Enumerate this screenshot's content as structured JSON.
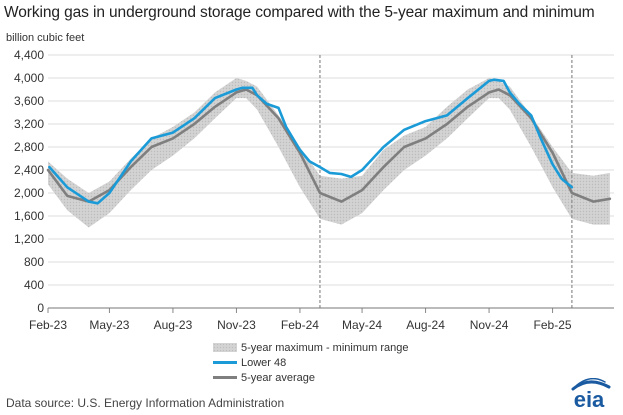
{
  "title": "Working gas in underground  storage compared with the 5-year maximum and minimum",
  "units": "billion cubic feet",
  "source": "Data source:  U.S. Energy Information Administration",
  "logo_text": "eia",
  "legend": {
    "band": "5-year maximum - minimum range",
    "lower48": "Lower 48",
    "avg": "5-year average"
  },
  "colors": {
    "lower48": "#1a9bd7",
    "avg": "#7f7f7f",
    "band": "#d3d3d3",
    "grid": "#dcdcdc",
    "logo": "#1a5aa0"
  },
  "chart_data": {
    "type": "area",
    "title": "Working gas in underground  storage compared with the 5-year maximum and minimum",
    "ylabel": "billion cubic feet",
    "xlabel": "",
    "ylim": [
      0,
      4400
    ],
    "yticks": [
      0,
      400,
      800,
      1200,
      1600,
      2000,
      2400,
      2800,
      3200,
      3600,
      4000,
      4400
    ],
    "ytick_labels": [
      "0",
      "400",
      "800",
      "1,200",
      "1,600",
      "2,000",
      "2,400",
      "2,800",
      "3,200",
      "3,600",
      "4,000",
      "4,400"
    ],
    "xticks": [
      "Feb-23",
      "May-23",
      "Aug-23",
      "Nov-23",
      "Feb-24",
      "May-24",
      "Aug-24",
      "Nov-24",
      "Feb-25"
    ],
    "grid": true,
    "legend_position": "bottom-center",
    "dashed_markers": [
      "2024-03-01",
      "2025-03-01"
    ],
    "series": [
      {
        "name": "5-year maximum - minimum range",
        "kind": "band",
        "x": [
          "2023-02-01",
          "2023-03-01",
          "2023-04-01",
          "2023-05-01",
          "2023-06-01",
          "2023-07-01",
          "2023-08-01",
          "2023-09-01",
          "2023-10-01",
          "2023-11-01",
          "2023-11-15",
          "2023-12-01",
          "2024-01-01",
          "2024-02-01",
          "2024-03-01",
          "2024-04-01",
          "2024-05-01",
          "2024-06-01",
          "2024-07-01",
          "2024-08-01",
          "2024-09-01",
          "2024-10-01",
          "2024-11-01",
          "2024-11-15",
          "2024-12-01",
          "2025-01-01",
          "2025-02-01",
          "2025-03-01",
          "2025-04-01",
          "2025-04-25"
        ],
        "max": [
          2550,
          2250,
          2000,
          2200,
          2600,
          2950,
          3150,
          3400,
          3750,
          4000,
          3950,
          3850,
          3350,
          2800,
          2300,
          2250,
          2300,
          2750,
          3000,
          3150,
          3500,
          3800,
          4000,
          3950,
          3850,
          3350,
          2800,
          2350,
          2300,
          2350
        ],
        "min": [
          2150,
          1700,
          1400,
          1650,
          2050,
          2400,
          2650,
          2950,
          3300,
          3650,
          3650,
          3450,
          2800,
          2100,
          1550,
          1450,
          1650,
          2050,
          2400,
          2650,
          2950,
          3300,
          3650,
          3650,
          3450,
          2800,
          2100,
          1550,
          1450,
          1450
        ]
      },
      {
        "name": "Lower 48",
        "x": [
          "2023-02-03",
          "2023-03-01",
          "2023-04-01",
          "2023-04-14",
          "2023-05-01",
          "2023-06-01",
          "2023-07-01",
          "2023-08-01",
          "2023-09-01",
          "2023-10-01",
          "2023-11-01",
          "2023-11-10",
          "2023-11-24",
          "2023-12-01",
          "2023-12-15",
          "2024-01-01",
          "2024-01-12",
          "2024-02-01",
          "2024-02-15",
          "2024-03-01",
          "2024-03-15",
          "2024-04-01",
          "2024-04-15",
          "2024-05-01",
          "2024-06-01",
          "2024-07-01",
          "2024-08-01",
          "2024-09-01",
          "2024-10-01",
          "2024-11-01",
          "2024-11-08",
          "2024-11-22",
          "2024-12-01",
          "2024-12-15",
          "2025-01-01",
          "2025-01-15",
          "2025-02-01",
          "2025-02-14",
          "2025-03-01"
        ],
        "values": [
          2450,
          2100,
          1850,
          1820,
          2000,
          2550,
          2950,
          3050,
          3300,
          3650,
          3800,
          3830,
          3830,
          3700,
          3550,
          3480,
          3150,
          2750,
          2550,
          2450,
          2350,
          2330,
          2280,
          2400,
          2800,
          3100,
          3250,
          3350,
          3650,
          3950,
          3970,
          3950,
          3750,
          3550,
          3350,
          2950,
          2500,
          2250,
          2100
        ]
      },
      {
        "name": "5-year average",
        "x": [
          "2023-02-01",
          "2023-03-01",
          "2023-04-01",
          "2023-05-01",
          "2023-06-01",
          "2023-07-01",
          "2023-08-01",
          "2023-09-01",
          "2023-10-01",
          "2023-11-01",
          "2023-11-15",
          "2023-12-01",
          "2024-01-01",
          "2024-02-01",
          "2024-03-01",
          "2024-04-01",
          "2024-05-01",
          "2024-06-01",
          "2024-07-01",
          "2024-08-01",
          "2024-09-01",
          "2024-10-01",
          "2024-11-01",
          "2024-11-15",
          "2024-12-01",
          "2025-01-01",
          "2025-02-01",
          "2025-03-01",
          "2025-04-01",
          "2025-04-25"
        ],
        "values": [
          2400,
          1950,
          1850,
          2050,
          2450,
          2800,
          2950,
          3200,
          3500,
          3750,
          3800,
          3700,
          3300,
          2700,
          2000,
          1850,
          2050,
          2450,
          2800,
          2950,
          3200,
          3500,
          3750,
          3800,
          3700,
          3300,
          2700,
          2000,
          1850,
          1900
        ]
      }
    ]
  }
}
